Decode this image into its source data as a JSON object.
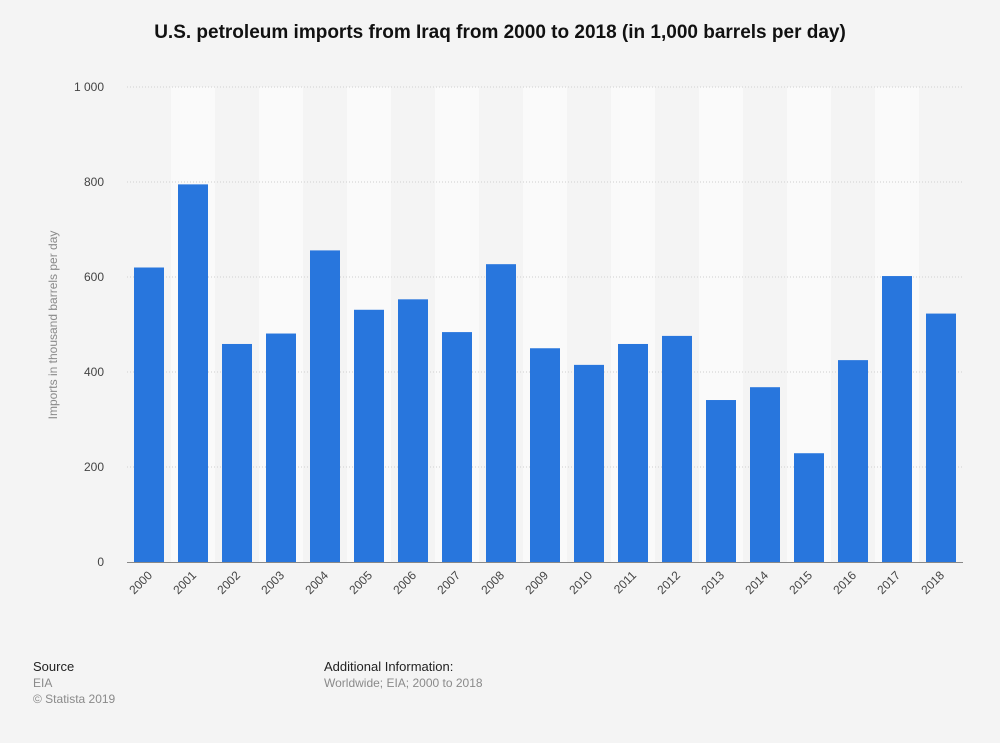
{
  "chart_data": {
    "type": "bar",
    "title": "U.S. petroleum imports from Iraq from 2000 to 2018 (in 1,000 barrels per day)",
    "xlabel": "",
    "ylabel": "Imports in thousand barrels per day",
    "ylim": [
      0,
      1000
    ],
    "yticks": [
      0,
      200,
      400,
      600,
      800,
      1000
    ],
    "ytick_labels": [
      "0",
      "200",
      "400",
      "600",
      "800",
      "1 000"
    ],
    "grid": true,
    "categories": [
      "2000",
      "2001",
      "2002",
      "2003",
      "2004",
      "2005",
      "2006",
      "2007",
      "2008",
      "2009",
      "2010",
      "2011",
      "2012",
      "2013",
      "2014",
      "2015",
      "2016",
      "2017",
      "2018"
    ],
    "values": [
      620,
      795,
      459,
      481,
      656,
      531,
      553,
      484,
      627,
      450,
      415,
      459,
      476,
      341,
      368,
      229,
      425,
      602,
      523
    ],
    "bar_color": "#2876dd"
  },
  "footer": {
    "source_label": "Source",
    "source_value": "EIA",
    "copyright": "© Statista 2019",
    "info_label": "Additional Information:",
    "info_value": "Worldwide; EIA; 2000 to 2018"
  }
}
